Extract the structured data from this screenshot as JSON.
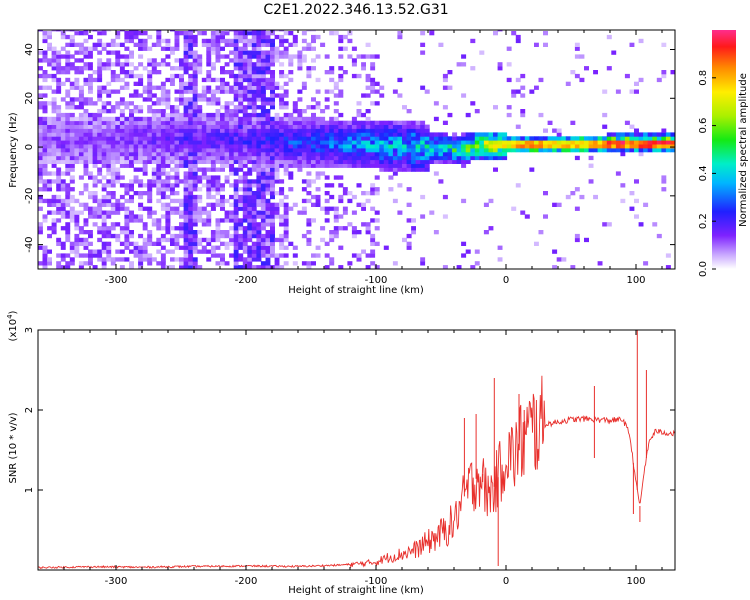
{
  "title": "C2E1.2022.346.13.52.G31",
  "colors": {
    "snr_line": "#e8302c",
    "axis": "#000000"
  },
  "colorbar": {
    "label": "Normalized spectral amplitude",
    "ticks": [
      0.0,
      0.2,
      0.4,
      0.6,
      0.8
    ],
    "tick_labels": [
      "0.0",
      "0.2",
      "0.4",
      "0.6",
      "0.8"
    ],
    "range": [
      0,
      1
    ],
    "colormap": "rainbow (white-violet-blue-cyan-green-yellow-red-magenta)"
  },
  "chart_data": [
    {
      "type": "heatmap",
      "title": "C2E1.2022.346.13.52.G31",
      "xlabel": "Height of straight line (km)",
      "ylabel": "Frequency (Hz)",
      "xlim": [
        -360,
        130
      ],
      "ylim": [
        -50,
        48
      ],
      "xticks": [
        -300,
        -200,
        -100,
        0,
        100
      ],
      "xtick_labels": [
        "-300",
        "-200",
        "-100",
        "0",
        "100"
      ],
      "yticks": [
        -40,
        -20,
        0,
        20,
        40
      ],
      "ytick_labels": [
        "-40",
        "-20",
        "0",
        "20",
        "40"
      ],
      "ridge": {
        "description_points_x": [
          -360,
          -300,
          -240,
          -200,
          -150,
          -100,
          -60,
          -40,
          -20,
          0,
          40,
          80,
          130
        ],
        "center_freq_hz": [
          2,
          2,
          3,
          2,
          1,
          0,
          -1,
          -2,
          0,
          0,
          0,
          1,
          1
        ],
        "normalized_amplitude": [
          0.12,
          0.14,
          0.2,
          0.22,
          0.3,
          0.4,
          0.45,
          0.5,
          0.7,
          0.8,
          0.8,
          0.85,
          0.95
        ]
      }
    },
    {
      "type": "line",
      "xlabel": "Height of straight line (km)",
      "ylabel": "SNR (10 * v/v)",
      "y_scale_label": "(x10",
      "y_scale_exp": "4",
      "y_scale_suffix": ")",
      "xlim": [
        -360,
        130
      ],
      "ylim": [
        0,
        30000
      ],
      "xticks": [
        -300,
        -200,
        -100,
        0,
        100
      ],
      "xtick_labels": [
        "-300",
        "-200",
        "-100",
        "0",
        "100"
      ],
      "yticks": [
        10000,
        20000,
        30000
      ],
      "ytick_labels": [
        "1",
        "2",
        "3"
      ],
      "series": [
        {
          "x": [
            -360,
            -320,
            -280,
            -240,
            -200,
            -160,
            -130,
            -110,
            -100,
            -90,
            -80,
            -70,
            -60,
            -50,
            -40,
            -35,
            -30,
            -25,
            -20,
            -15,
            -10,
            -5,
            0,
            5,
            10,
            20,
            30,
            40,
            50,
            60,
            70,
            80,
            90,
            95,
            100,
            103,
            106,
            110,
            115,
            120,
            130
          ],
          "y": [
            300,
            400,
            350,
            450,
            500,
            450,
            600,
            800,
            1000,
            1600,
            2000,
            2500,
            3500,
            4500,
            6000,
            8000,
            10000,
            11000,
            12000,
            9500,
            10000,
            12000,
            15000,
            14000,
            15500,
            17500,
            18200,
            18500,
            18800,
            18900,
            18800,
            18700,
            18800,
            17000,
            11000,
            8000,
            12000,
            16000,
            17400,
            17200,
            17000
          ],
          "spikes": [
            {
              "x": -32,
              "y": 19000
            },
            {
              "x": -23,
              "y": 19500
            },
            {
              "x": -18,
              "y": 12000
            },
            {
              "x": -9,
              "y": 24000
            },
            {
              "x": -6,
              "y": 500
            },
            {
              "x": 10,
              "y": 22000
            },
            {
              "x": 14,
              "y": 20000
            },
            {
              "x": 68,
              "y": 14000
            },
            {
              "x": 68,
              "y": 23000
            },
            {
              "x": 98,
              "y": 7000
            },
            {
              "x": 101,
              "y": 30000
            },
            {
              "x": 103,
              "y": 6000
            },
            {
              "x": 108,
              "y": 25000
            }
          ]
        }
      ]
    }
  ]
}
